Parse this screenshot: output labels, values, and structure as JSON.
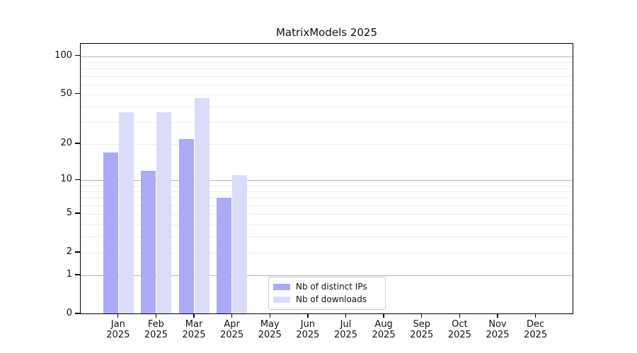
{
  "title": "MatrixModels 2025",
  "chart_data": {
    "type": "bar",
    "title": "MatrixModels 2025",
    "categories": [
      "Jan",
      "Feb",
      "Mar",
      "Apr",
      "May",
      "Jun",
      "Jul",
      "Aug",
      "Sep",
      "Oct",
      "Nov",
      "Dec"
    ],
    "category_year": "2025",
    "series": [
      {
        "name": "Nb of distinct IPs",
        "color": "#aaaaf5",
        "values": [
          17,
          12,
          22,
          7,
          null,
          null,
          null,
          null,
          null,
          null,
          null,
          null
        ]
      },
      {
        "name": "Nb of downloads",
        "color": "#dbdbfa",
        "values": [
          36,
          36,
          47,
          11,
          null,
          null,
          null,
          null,
          null,
          null,
          null,
          null
        ]
      }
    ],
    "xlabel": "",
    "ylabel": "",
    "yscale": "log10(1+x)",
    "ylim": [
      0,
      130
    ],
    "yticks": [
      0,
      1,
      2,
      5,
      10,
      20,
      50,
      100
    ],
    "major_gridlines": [
      1,
      10,
      100
    ],
    "minor_gridlines": [
      2,
      3,
      4,
      5,
      6,
      7,
      8,
      9,
      20,
      30,
      40,
      50,
      60,
      70,
      80,
      90
    ],
    "grid_major_color": "#b4b4b4",
    "grid_minor_color": "#ededed",
    "legend_position": "inside-bottom-center",
    "grid": "horizontal-only"
  }
}
